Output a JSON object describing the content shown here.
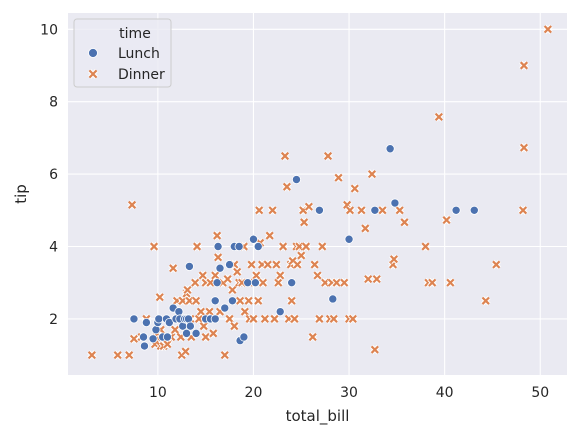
{
  "chart_data": {
    "type": "scatter",
    "xlabel": "total_bill",
    "ylabel": "tip",
    "xlim": [
      0.6,
      52.8
    ],
    "ylim": [
      0.45,
      10.45
    ],
    "x_ticks": [
      10,
      20,
      30,
      40,
      50
    ],
    "y_ticks": [
      2,
      4,
      6,
      8,
      10
    ],
    "grid": true,
    "background": "#eaeaf2",
    "grid_color": "#ffffff",
    "legend": {
      "title": "time",
      "placement": "top-left"
    },
    "series": [
      {
        "name": "Lunch",
        "marker": "circle",
        "color": "#4c72b0",
        "points": [
          [
            7.5,
            2.0
          ],
          [
            8.5,
            1.5
          ],
          [
            8.6,
            1.25
          ],
          [
            8.8,
            1.9
          ],
          [
            9.5,
            1.45
          ],
          [
            9.8,
            1.7
          ],
          [
            10.0,
            1.9
          ],
          [
            10.1,
            2.0
          ],
          [
            10.5,
            1.5
          ],
          [
            10.9,
            2.0
          ],
          [
            11.0,
            1.5
          ],
          [
            11.2,
            1.9
          ],
          [
            11.6,
            2.3
          ],
          [
            11.9,
            2.0
          ],
          [
            12.2,
            2.2
          ],
          [
            12.3,
            2.0
          ],
          [
            12.6,
            1.8
          ],
          [
            12.8,
            2.0
          ],
          [
            13.0,
            2.0
          ],
          [
            13.0,
            1.6
          ],
          [
            13.2,
            2.0
          ],
          [
            13.3,
            3.45
          ],
          [
            13.4,
            1.8
          ],
          [
            14.0,
            1.6
          ],
          [
            15.0,
            2.0
          ],
          [
            15.5,
            2.0
          ],
          [
            16.0,
            2.5
          ],
          [
            16.0,
            2.0
          ],
          [
            16.2,
            3.0
          ],
          [
            16.3,
            4.0
          ],
          [
            16.5,
            3.4
          ],
          [
            17.0,
            2.3
          ],
          [
            17.5,
            3.5
          ],
          [
            17.8,
            2.5
          ],
          [
            18.0,
            4.0
          ],
          [
            18.5,
            4.0
          ],
          [
            18.6,
            1.4
          ],
          [
            19.0,
            1.5
          ],
          [
            19.4,
            3.0
          ],
          [
            20.0,
            4.2
          ],
          [
            20.2,
            3.0
          ],
          [
            20.5,
            4.0
          ],
          [
            22.8,
            2.2
          ],
          [
            24.0,
            3.0
          ],
          [
            24.5,
            5.85
          ],
          [
            26.9,
            5.0
          ],
          [
            28.3,
            2.55
          ],
          [
            30.0,
            4.2
          ],
          [
            32.7,
            5.0
          ],
          [
            34.3,
            6.7
          ],
          [
            34.8,
            5.2
          ],
          [
            41.2,
            5.0
          ],
          [
            43.1,
            5.0
          ]
        ]
      },
      {
        "name": "Dinner",
        "marker": "x",
        "color": "#dd8452",
        "points": [
          [
            3.1,
            1.0
          ],
          [
            5.8,
            1.0
          ],
          [
            7.0,
            1.0
          ],
          [
            7.3,
            5.15
          ],
          [
            7.5,
            1.45
          ],
          [
            8.3,
            1.5
          ],
          [
            8.8,
            2.0
          ],
          [
            9.6,
            4.0
          ],
          [
            9.7,
            1.3
          ],
          [
            9.9,
            1.5
          ],
          [
            10.0,
            1.6
          ],
          [
            10.2,
            2.6
          ],
          [
            10.3,
            1.25
          ],
          [
            10.3,
            1.7
          ],
          [
            10.6,
            1.25
          ],
          [
            11.0,
            1.3
          ],
          [
            11.2,
            1.5
          ],
          [
            11.4,
            1.5
          ],
          [
            11.6,
            3.4
          ],
          [
            11.8,
            1.7
          ],
          [
            12.0,
            2.5
          ],
          [
            12.2,
            2.0
          ],
          [
            12.4,
            1.5
          ],
          [
            12.5,
            1.0
          ],
          [
            12.6,
            2.5
          ],
          [
            12.9,
            1.1
          ],
          [
            13.0,
            2.7
          ],
          [
            13.1,
            2.8
          ],
          [
            13.3,
            2.5
          ],
          [
            13.4,
            2.0
          ],
          [
            13.5,
            1.5
          ],
          [
            13.9,
            3.0
          ],
          [
            14.0,
            2.5
          ],
          [
            14.1,
            4.0
          ],
          [
            14.3,
            2.0
          ],
          [
            14.5,
            2.2
          ],
          [
            14.7,
            3.2
          ],
          [
            14.8,
            1.8
          ],
          [
            15.0,
            1.5
          ],
          [
            15.0,
            3.0
          ],
          [
            15.4,
            2.2
          ],
          [
            15.5,
            3.0
          ],
          [
            15.8,
            1.6
          ],
          [
            16.0,
            3.2
          ],
          [
            16.2,
            4.3
          ],
          [
            16.3,
            3.7
          ],
          [
            16.5,
            2.2
          ],
          [
            16.8,
            3.0
          ],
          [
            17.0,
            1.0
          ],
          [
            17.3,
            3.1
          ],
          [
            17.5,
            2.0
          ],
          [
            17.8,
            2.8
          ],
          [
            18.0,
            3.5
          ],
          [
            18.0,
            1.8
          ],
          [
            18.2,
            4.0
          ],
          [
            18.3,
            3.3
          ],
          [
            18.5,
            3.0
          ],
          [
            18.6,
            2.5
          ],
          [
            18.8,
            3.0
          ],
          [
            19.0,
            4.0
          ],
          [
            19.1,
            2.2
          ],
          [
            19.5,
            2.5
          ],
          [
            19.6,
            2.0
          ],
          [
            19.8,
            3.5
          ],
          [
            20.0,
            2.0
          ],
          [
            20.1,
            3.0
          ],
          [
            20.3,
            3.2
          ],
          [
            20.5,
            2.5
          ],
          [
            20.6,
            5.0
          ],
          [
            20.7,
            4.1
          ],
          [
            20.9,
            3.5
          ],
          [
            21.0,
            3.0
          ],
          [
            21.2,
            2.0
          ],
          [
            21.5,
            3.5
          ],
          [
            21.7,
            4.3
          ],
          [
            22.0,
            5.0
          ],
          [
            22.2,
            2.0
          ],
          [
            22.4,
            3.5
          ],
          [
            22.6,
            3.0
          ],
          [
            22.8,
            3.2
          ],
          [
            23.1,
            4.0
          ],
          [
            23.3,
            6.5
          ],
          [
            23.5,
            5.65
          ],
          [
            23.7,
            2.0
          ],
          [
            23.9,
            3.5
          ],
          [
            24.0,
            2.5
          ],
          [
            24.1,
            3.6
          ],
          [
            24.3,
            2.0
          ],
          [
            24.5,
            4.0
          ],
          [
            24.6,
            3.5
          ],
          [
            24.8,
            4.0
          ],
          [
            25.0,
            3.75
          ],
          [
            25.2,
            5.0
          ],
          [
            25.3,
            4.67
          ],
          [
            25.5,
            4.0
          ],
          [
            25.8,
            5.1
          ],
          [
            26.2,
            1.5
          ],
          [
            26.4,
            3.5
          ],
          [
            26.7,
            3.2
          ],
          [
            26.9,
            2.0
          ],
          [
            27.2,
            4.0
          ],
          [
            27.5,
            3.0
          ],
          [
            27.8,
            6.5
          ],
          [
            28.0,
            2.0
          ],
          [
            28.2,
            3.0
          ],
          [
            28.4,
            2.0
          ],
          [
            28.7,
            3.0
          ],
          [
            28.9,
            5.9
          ],
          [
            29.5,
            3.0
          ],
          [
            29.8,
            5.15
          ],
          [
            30.0,
            2.0
          ],
          [
            30.1,
            5.0
          ],
          [
            30.4,
            2.0
          ],
          [
            30.6,
            5.6
          ],
          [
            31.3,
            5.0
          ],
          [
            31.7,
            4.5
          ],
          [
            32.0,
            3.1
          ],
          [
            32.4,
            6.0
          ],
          [
            32.7,
            1.15
          ],
          [
            32.9,
            3.1
          ],
          [
            33.5,
            5.0
          ],
          [
            34.6,
            3.5
          ],
          [
            34.7,
            3.65
          ],
          [
            35.3,
            5.0
          ],
          [
            35.8,
            4.67
          ],
          [
            38.0,
            4.0
          ],
          [
            38.3,
            3.0
          ],
          [
            38.7,
            3.0
          ],
          [
            39.4,
            7.58
          ],
          [
            40.2,
            4.73
          ],
          [
            40.6,
            3.0
          ],
          [
            44.3,
            2.5
          ],
          [
            45.4,
            3.5
          ],
          [
            48.2,
            5.0
          ],
          [
            48.3,
            6.73
          ],
          [
            48.3,
            9.0
          ],
          [
            50.8,
            10.0
          ]
        ]
      }
    ]
  }
}
